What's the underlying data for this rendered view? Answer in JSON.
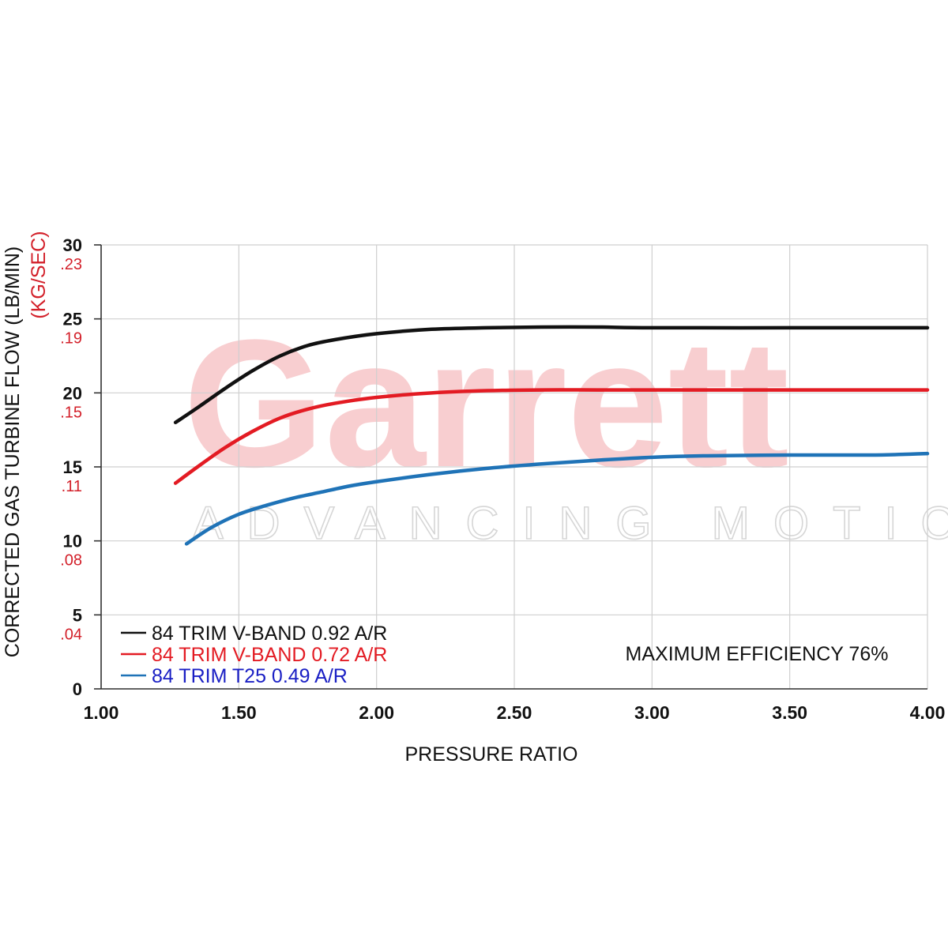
{
  "chart_data": {
    "type": "line",
    "xlabel": "PRESSURE RATIO",
    "ylabel": "CORRECTED GAS TURBINE FLOW (LB/MIN)",
    "ylabel_secondary": "(KG/SEC)",
    "xlim": [
      1.0,
      4.0
    ],
    "ylim": [
      0,
      30
    ],
    "x_ticks": [
      "1.00",
      "1.50",
      "2.00",
      "2.50",
      "3.00",
      "3.50",
      "4.00"
    ],
    "y_ticks": [
      "0",
      "5",
      "10",
      "15",
      "20",
      "25",
      "30"
    ],
    "y_ticks_secondary": [
      ".04",
      ".08",
      ".11",
      ".15",
      ".19",
      ".23"
    ],
    "grid": true,
    "legend_position": "bottom-left",
    "annotation": "MAXIMUM EFFICIENCY 76%",
    "watermark": "Garrett",
    "watermark_tagline": "ADVANCING MOTION",
    "series": [
      {
        "name": "84 TRIM V-BAND 0.92 A/R",
        "color": "#111111",
        "x": [
          1.27,
          1.35,
          1.45,
          1.55,
          1.65,
          1.75,
          1.85,
          2.0,
          2.2,
          2.4,
          2.6,
          2.8,
          3.0,
          3.5,
          4.0
        ],
        "y": [
          18.0,
          19.0,
          20.3,
          21.5,
          22.5,
          23.2,
          23.6,
          24.0,
          24.3,
          24.4,
          24.45,
          24.45,
          24.4,
          24.4,
          24.4
        ]
      },
      {
        "name": "84 TRIM V-BAND 0.72 A/R",
        "color": "#e31b23",
        "x": [
          1.27,
          1.35,
          1.45,
          1.55,
          1.65,
          1.75,
          1.85,
          2.0,
          2.2,
          2.4,
          2.6,
          2.8,
          3.0,
          3.5,
          4.0
        ],
        "y": [
          13.9,
          15.0,
          16.3,
          17.4,
          18.3,
          18.9,
          19.3,
          19.7,
          20.0,
          20.15,
          20.2,
          20.2,
          20.2,
          20.2,
          20.2
        ]
      },
      {
        "name": "84 TRIM T25 0.49 A/R",
        "color": "#1f73b7",
        "x": [
          1.31,
          1.4,
          1.5,
          1.6,
          1.7,
          1.8,
          1.9,
          2.0,
          2.2,
          2.4,
          2.6,
          2.8,
          3.0,
          3.2,
          3.5,
          3.8,
          4.0
        ],
        "y": [
          9.8,
          10.9,
          11.8,
          12.4,
          12.9,
          13.3,
          13.7,
          14.0,
          14.5,
          14.9,
          15.2,
          15.45,
          15.65,
          15.75,
          15.8,
          15.8,
          15.9
        ]
      }
    ]
  },
  "legend_text_colors": [
    "#111111",
    "#e31b23",
    "#1a1fc4"
  ]
}
